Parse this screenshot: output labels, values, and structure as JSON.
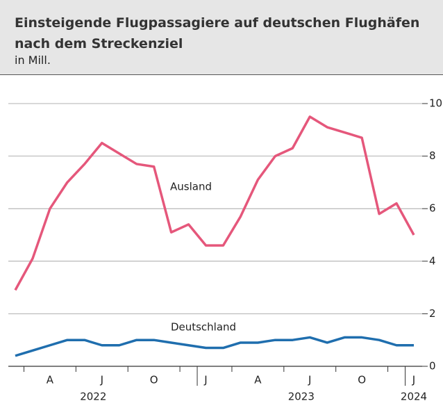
{
  "chart_data": {
    "type": "line",
    "title": "Einsteigende Flugpassagiere auf deutschen Flughäfen nach dem Streckenziel",
    "subtitle": "in Mill.",
    "categories": [
      null,
      null,
      "A",
      null,
      null,
      "J",
      null,
      null,
      "O",
      null,
      null,
      "J",
      null,
      null,
      "A",
      null,
      null,
      "J",
      null,
      null,
      "O",
      null,
      null,
      "J"
    ],
    "year_labels": [
      "2022",
      "2023",
      "2024"
    ],
    "series": [
      {
        "name": "Ausland",
        "color": "#e5577b",
        "values": [
          2.9,
          4.1,
          6.0,
          7.0,
          7.7,
          8.5,
          8.1,
          7.7,
          7.6,
          5.1,
          5.4,
          4.6,
          4.6,
          5.7,
          7.1,
          8.0,
          8.3,
          9.5,
          9.1,
          8.9,
          8.7,
          5.8,
          6.2,
          5.0
        ]
      },
      {
        "name": "Deutschland",
        "color": "#1f6eae",
        "values": [
          0.4,
          0.6,
          0.8,
          1.0,
          1.0,
          0.8,
          0.8,
          1.0,
          1.0,
          0.9,
          0.8,
          0.7,
          0.7,
          0.9,
          0.9,
          1.0,
          1.0,
          1.1,
          0.9,
          1.1,
          1.1,
          1.0,
          0.8,
          0.8
        ]
      }
    ],
    "ylim": [
      0,
      10
    ],
    "yticks": [
      0,
      2,
      4,
      6,
      8,
      10
    ],
    "grid": true
  }
}
